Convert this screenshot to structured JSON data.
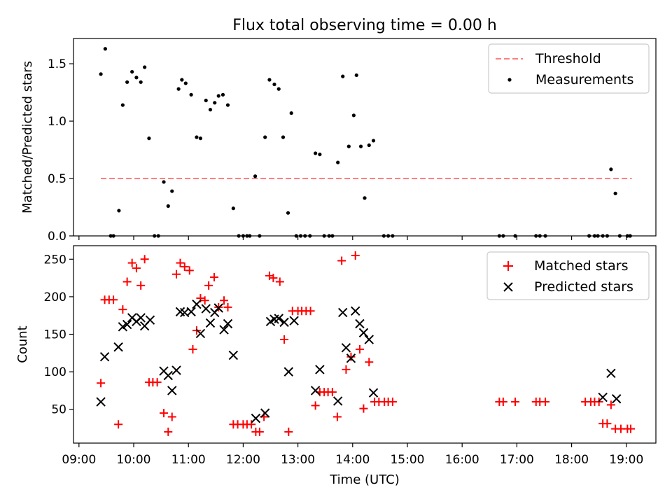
{
  "title": "Flux total observing time = 0.00 h",
  "chart_data": [
    {
      "type": "scatter",
      "ylabel": "Matched/Predicted stars",
      "xlim": [
        8.9,
        19.54
      ],
      "ylim": [
        0,
        1.72
      ],
      "yticks": [
        0.0,
        0.5,
        1.0,
        1.5
      ],
      "ytick_labels": [
        "0.0",
        "0.5",
        "1.0",
        "1.5"
      ],
      "grid": false,
      "legend": {
        "position": "top-right"
      },
      "threshold": {
        "name": "Threshold",
        "x": [
          9.4,
          19.1
        ],
        "y": 0.5,
        "color": "#ff7f7f"
      },
      "series": [
        {
          "name": "Measurements",
          "color": "#000000",
          "x": [
            9.4,
            9.48,
            9.58,
            9.63,
            9.73,
            9.8,
            9.88,
            9.97,
            10.05,
            10.13,
            10.2,
            10.28,
            10.38,
            10.45,
            10.55,
            10.63,
            10.7,
            10.82,
            10.88,
            10.95,
            11.05,
            11.15,
            11.22,
            11.32,
            11.4,
            11.48,
            11.55,
            11.63,
            11.72,
            11.82,
            11.92,
            12.0,
            12.07,
            12.12,
            12.22,
            12.3,
            12.4,
            12.48,
            12.57,
            12.65,
            12.73,
            12.82,
            12.88,
            12.97,
            13.05,
            13.13,
            13.22,
            13.32,
            13.4,
            13.48,
            13.57,
            13.63,
            13.73,
            13.82,
            13.93,
            14.02,
            14.07,
            14.15,
            14.22,
            14.3,
            14.38,
            14.57,
            14.65,
            14.73,
            16.68,
            16.75,
            16.97,
            17.35,
            17.42,
            17.52,
            18.32,
            18.42,
            18.48,
            18.57,
            18.65,
            18.72,
            18.8,
            18.88,
            19.02,
            19.07
          ],
          "y": [
            1.41,
            1.63,
            0.0,
            0.0,
            0.22,
            1.14,
            1.34,
            1.43,
            1.38,
            1.34,
            1.47,
            0.85,
            0.0,
            0.0,
            0.47,
            0.26,
            0.39,
            1.28,
            1.36,
            1.33,
            1.23,
            0.86,
            0.85,
            1.18,
            1.1,
            1.16,
            1.22,
            1.23,
            1.14,
            0.24,
            0.0,
            0.0,
            0.0,
            0.0,
            0.52,
            0.0,
            0.86,
            1.36,
            1.32,
            1.28,
            0.86,
            0.2,
            1.07,
            0.0,
            0.0,
            0.0,
            0.0,
            0.72,
            0.71,
            0.0,
            0.0,
            0.0,
            0.64,
            1.39,
            0.78,
            1.05,
            1.4,
            0.78,
            0.33,
            0.79,
            0.83,
            0.0,
            0.0,
            0.0,
            0.0,
            0.0,
            0.0,
            0.0,
            0.0,
            0.0,
            0.0,
            0.0,
            0.0,
            0.0,
            0.0,
            0.58,
            0.37,
            0.0,
            0.0,
            0.0
          ]
        }
      ]
    },
    {
      "type": "scatter",
      "xlabel": "Time (UTC)",
      "ylabel": "Count",
      "xlim": [
        8.9,
        19.54
      ],
      "ylim": [
        5,
        268
      ],
      "yticks": [
        50,
        100,
        150,
        200,
        250
      ],
      "ytick_labels": [
        "50",
        "100",
        "150",
        "200",
        "250"
      ],
      "xticks": [
        9,
        10,
        11,
        12,
        13,
        14,
        15,
        16,
        17,
        18,
        19
      ],
      "xtick_labels": [
        "09:00",
        "10:00",
        "11:00",
        "12:00",
        "13:00",
        "14:00",
        "15:00",
        "16:00",
        "17:00",
        "18:00",
        "19:00"
      ],
      "grid": false,
      "legend": {
        "position": "top-right"
      },
      "series": [
        {
          "name": "Matched stars",
          "marker": "plus",
          "color": "#ff0000",
          "x": [
            9.4,
            9.47,
            9.55,
            9.63,
            9.72,
            9.8,
            9.88,
            9.97,
            10.05,
            10.13,
            10.2,
            10.28,
            10.35,
            10.43,
            10.55,
            10.63,
            10.7,
            10.78,
            10.85,
            10.93,
            11.02,
            11.08,
            11.15,
            11.22,
            11.3,
            11.37,
            11.47,
            11.55,
            11.65,
            11.72,
            11.82,
            11.9,
            12.0,
            12.07,
            12.15,
            12.23,
            12.3,
            12.38,
            12.48,
            12.55,
            12.67,
            12.75,
            12.83,
            12.9,
            13.0,
            13.07,
            13.15,
            13.23,
            13.32,
            13.4,
            13.48,
            13.55,
            13.63,
            13.72,
            13.8,
            13.88,
            13.97,
            14.05,
            14.13,
            14.2,
            14.3,
            14.4,
            14.48,
            14.58,
            14.65,
            14.73,
            16.68,
            16.75,
            16.97,
            17.35,
            17.42,
            17.52,
            18.25,
            18.35,
            18.42,
            18.5,
            18.57,
            18.65,
            18.72,
            18.8,
            18.9,
            19.02,
            19.08
          ],
          "y": [
            85,
            196,
            196,
            196,
            30,
            183,
            220,
            245,
            238,
            215,
            250,
            86,
            86,
            86,
            45,
            20,
            40,
            230,
            245,
            240,
            235,
            130,
            155,
            198,
            195,
            215,
            226,
            186,
            195,
            186,
            30,
            30,
            30,
            30,
            30,
            20,
            20,
            40,
            228,
            225,
            220,
            143,
            20,
            181,
            181,
            181,
            181,
            181,
            55,
            73,
            73,
            73,
            73,
            40,
            248,
            103,
            120,
            255,
            130,
            51,
            113,
            60,
            60,
            60,
            60,
            60,
            60,
            60,
            60,
            60,
            60,
            60,
            60,
            60,
            60,
            60,
            31,
            31,
            56,
            24,
            24,
            24,
            24
          ]
        },
        {
          "name": "Predicted stars",
          "marker": "x",
          "color": "#000000",
          "x": [
            9.4,
            9.47,
            9.72,
            9.8,
            9.88,
            9.97,
            10.05,
            10.13,
            10.2,
            10.3,
            10.55,
            10.63,
            10.7,
            10.78,
            10.85,
            10.93,
            11.05,
            11.15,
            11.22,
            11.32,
            11.4,
            11.48,
            11.55,
            11.65,
            11.72,
            11.82,
            12.23,
            12.4,
            12.5,
            12.57,
            12.65,
            12.75,
            12.83,
            12.93,
            13.32,
            13.4,
            13.73,
            13.82,
            13.88,
            13.97,
            14.05,
            14.13,
            14.2,
            14.3,
            14.38,
            18.57,
            18.72,
            18.82
          ],
          "y": [
            60,
            120,
            133,
            160,
            163,
            172,
            167,
            172,
            161,
            169,
            101,
            95,
            75,
            102,
            180,
            179,
            180,
            190,
            151,
            184,
            165,
            179,
            185,
            156,
            164,
            122,
            38,
            45,
            167,
            170,
            171,
            166,
            100,
            168,
            75,
            103,
            61,
            179,
            132,
            118,
            181,
            164,
            152,
            143,
            72,
            66,
            98,
            64
          ]
        }
      ]
    }
  ]
}
